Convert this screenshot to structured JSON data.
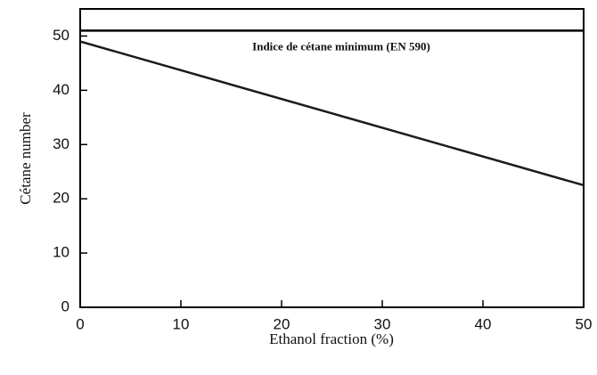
{
  "chart_data": {
    "type": "line",
    "x_label": "Ethanol fraction (%)",
    "y_label": "Cétane number",
    "x": [
      0,
      50
    ],
    "series": [
      {
        "name": "Cétane number",
        "color": "#1a1a1a",
        "values": [
          49,
          22.5
        ]
      }
    ],
    "reference_line": {
      "value": 51,
      "label": "Indice de cétane minimum (EN 590)",
      "color": "#000000"
    },
    "xlim": [
      0,
      50
    ],
    "xticks": [
      0,
      10,
      20,
      30,
      40,
      50
    ],
    "ylim": [
      0,
      55
    ],
    "yticks": [
      0,
      10,
      20,
      30,
      40,
      50
    ]
  }
}
